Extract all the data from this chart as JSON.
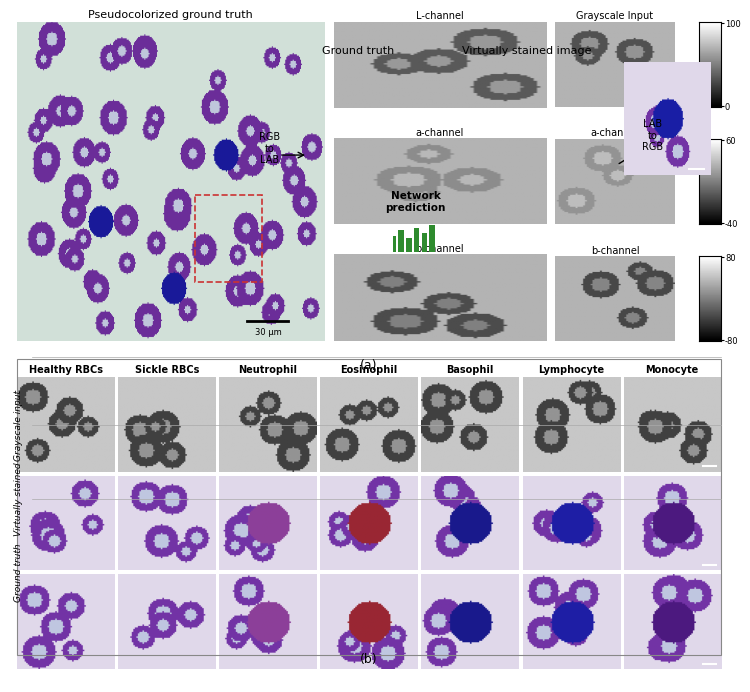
{
  "title_a": "(a)",
  "title_b": "(b)",
  "panel_a_title_left": "Pseudocolorized ground truth",
  "panel_a_title_gt": "Ground truth",
  "panel_a_title_vs": "Virtually stained image",
  "rgb_to_lab": "RGB\nto\nLAB",
  "lab_to_rgb": "LAB\nto\nRGB",
  "network_prediction": "Network\nprediction",
  "l_channel": "L-channel",
  "a_channel_gt": "a-channel",
  "b_channel_gt": "b-channel",
  "grayscale_input": "Grayscale Input",
  "a_channel_vs": "a-channel",
  "b_channel_vs": "b-channel",
  "scale_bar_text": "30 μm",
  "colorbar1_ticks": [
    100,
    0
  ],
  "colorbar2_ticks": [
    60,
    -40
  ],
  "colorbar3_ticks": [
    80,
    -80
  ],
  "col_labels": [
    "Healthy RBCs",
    "Sickle RBCs",
    "Neutrophil",
    "Eosinophil",
    "Basophil",
    "Lymphocyte",
    "Monocyte"
  ],
  "row_labels": [
    "Grayscale input",
    "Virtually stained",
    "Ground truth"
  ],
  "bg_color": "#ffffff",
  "gray_color": "#cccccc",
  "green_bar_color": "#2e8b2e",
  "arrow_color": "#333333",
  "text_color": "#000000",
  "dashed_box_color": "#cc3333",
  "panel_bg": "#f0f0f0"
}
